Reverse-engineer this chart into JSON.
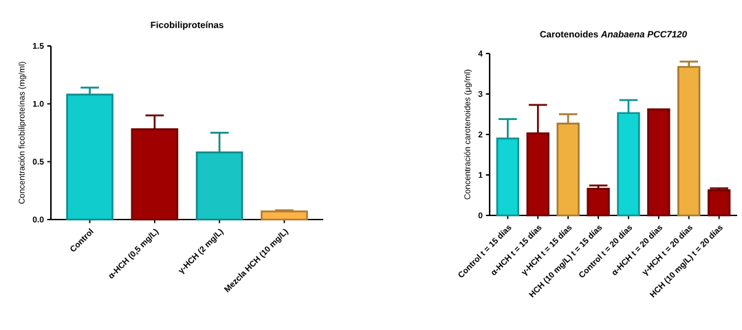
{
  "chart_data": [
    {
      "type": "bar",
      "title": "Ficobiliproteínas",
      "ylabel": "Concentración ficobiliproteínas (mg/ml)",
      "categories": [
        "Control",
        "α-HCH (0,5 mg/L)",
        "γ-HCH (2 mg/L)",
        "Mezcla HCH (10 mg/L)"
      ],
      "values": [
        1.08,
        0.78,
        0.58,
        0.07
      ],
      "errors": [
        0.06,
        0.12,
        0.17,
        0.01
      ],
      "colors": [
        "#11cccc",
        "#a00000",
        "#19c4c4",
        "#ffb347"
      ],
      "ylim": [
        0,
        1.5
      ],
      "yticks": [
        {
          "value": 0,
          "label": "0.0"
        },
        {
          "value": 0.5,
          "label": "0.5"
        },
        {
          "value": 1,
          "label": "1.0"
        },
        {
          "value": 1.5,
          "label": "1.5"
        }
      ]
    },
    {
      "type": "bar",
      "title": "Carotenoides *Anabaena PCC7120*",
      "ylabel": "Concentración carotenoides (μg/ml)",
      "categories": [
        "Control t = 15 días",
        "α-HCH t = 15 días",
        "γ-HCH t = 15 días",
        "HCH (10 mg/L) t = 15 días",
        "Control t = 20 días",
        "α-HCH t = 20 días",
        "γ-HCH t = 20 días",
        "HCH (10 mg/L) t = 20 días"
      ],
      "values": [
        1.9,
        2.03,
        2.27,
        0.66,
        2.53,
        2.62,
        3.67,
        0.62
      ],
      "errors": [
        0.48,
        0.7,
        0.23,
        0.08,
        0.32,
        null,
        0.13,
        0.05
      ],
      "colors": [
        "#11d4d4",
        "#a00000",
        "#f0b040",
        "#a00000",
        "#11d4d4",
        "#a00000",
        "#f0b040",
        "#a00000"
      ],
      "ylim": [
        0,
        4
      ],
      "yticks": [
        0,
        1,
        2,
        3,
        4
      ]
    }
  ]
}
